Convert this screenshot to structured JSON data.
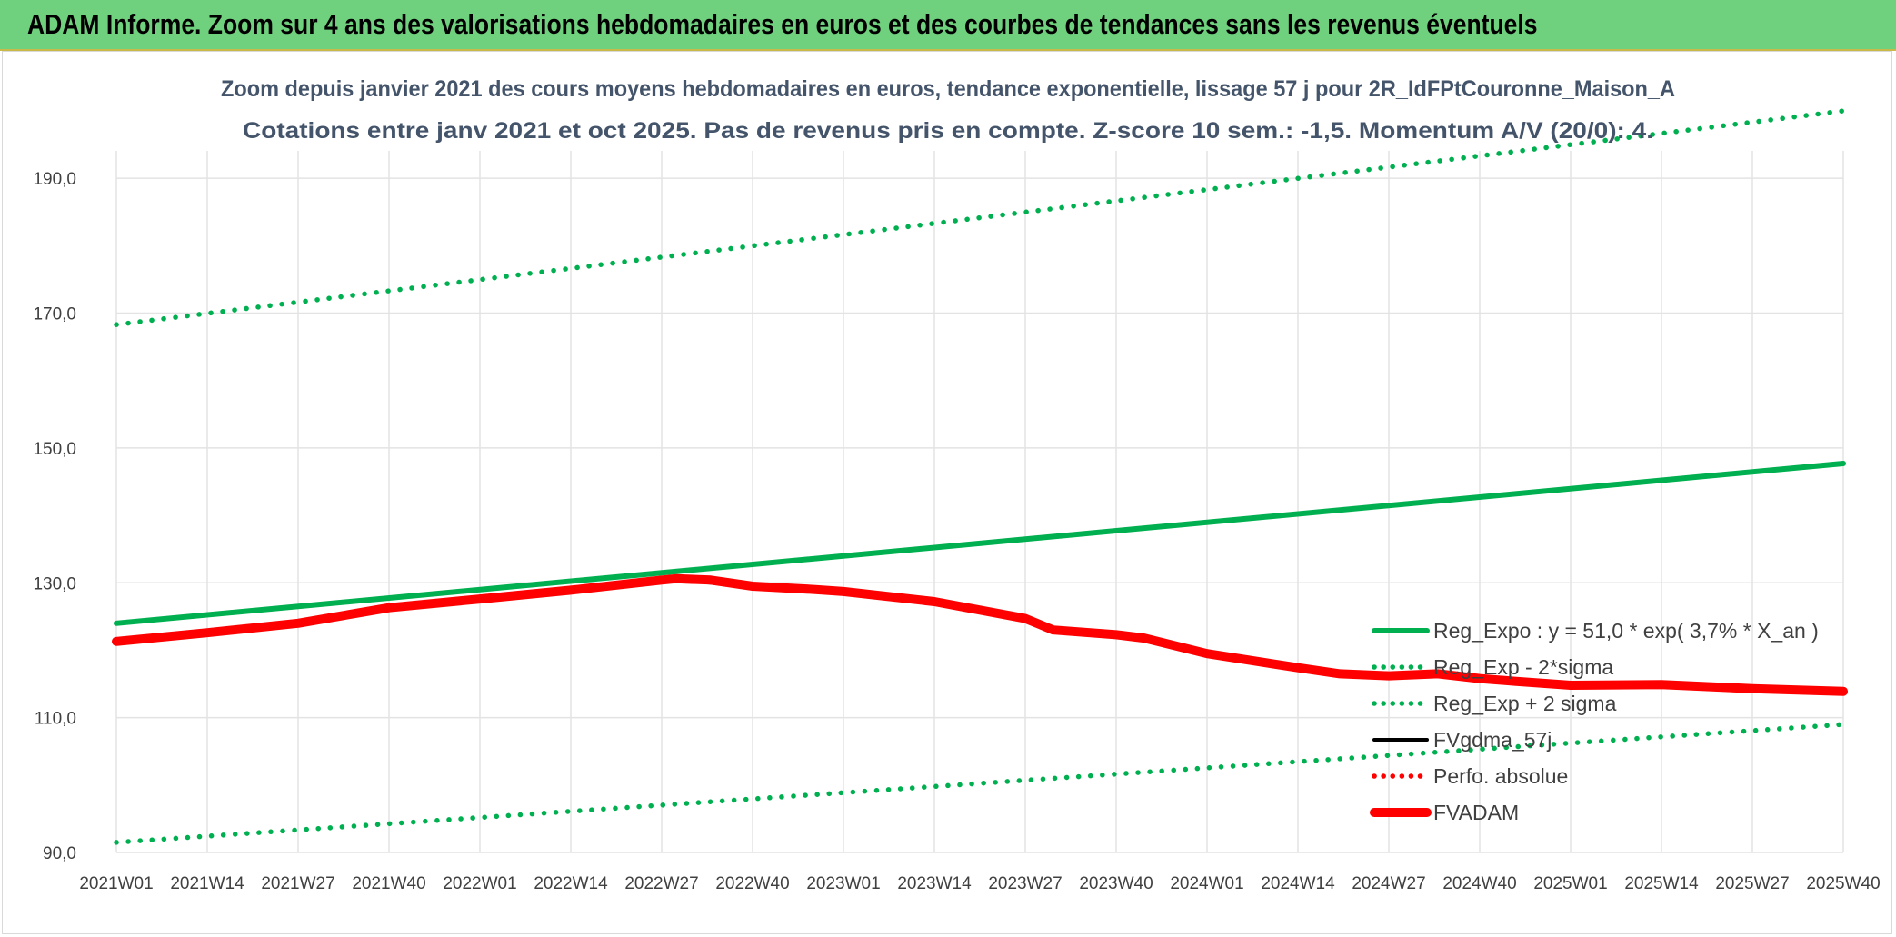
{
  "header": {
    "title": "ADAM Informe. Zoom sur 4 ans des valorisations hebdomadaires en euros et des courbes de tendances sans les revenus éventuels"
  },
  "chart_data": {
    "type": "line",
    "title": "Zoom depuis janvier 2021 des cours moyens hebdomadaires en euros, tendance exponentielle, lissage 57 j pour 2R_IdFPtCouronne_Maison_A",
    "subtitle": "Cotations entre janv 2021 et oct 2025. Pas de revenus pris en compte. Z-score 10 sem.: -1,5. Momentum A/V (20/0): 4.",
    "xlabel": "",
    "ylabel": "",
    "ylim": [
      90,
      200
    ],
    "x_range": [
      0,
      247
    ],
    "y_ticks": [
      "90,0",
      "110,0",
      "130,0",
      "150,0",
      "170,0",
      "190,0"
    ],
    "y_tick_values": [
      90,
      110,
      130,
      150,
      170,
      190
    ],
    "x_ticks": [
      "2021W01",
      "2021W14",
      "2021W27",
      "2021W40",
      "2022W01",
      "2022W14",
      "2022W27",
      "2022W40",
      "2023W01",
      "2023W14",
      "2023W27",
      "2023W40",
      "2024W01",
      "2024W14",
      "2024W27",
      "2024W40",
      "2025W01",
      "2025W14",
      "2025W27",
      "2025W40"
    ],
    "grid": true,
    "legend_position": "bottom-right",
    "series": [
      {
        "name": "Reg_Expo : y = 51,0 * exp( 3,7% *  X_an )",
        "style": "solid",
        "color": "#00b050",
        "x": [
          0,
          247
        ],
        "values": [
          124.0,
          147.7
        ]
      },
      {
        "name": "Reg_Exp - 2*sigma",
        "style": "dotted",
        "color": "#00b050",
        "x": [
          0,
          247
        ],
        "values": [
          91.5,
          109.0
        ]
      },
      {
        "name": "Reg_Exp + 2 sigma",
        "style": "dotted",
        "color": "#00b050",
        "x": [
          0,
          247
        ],
        "values": [
          168.3,
          200.0
        ]
      },
      {
        "name": "FVgdma_57j",
        "style": "solid",
        "color": "#000000",
        "x": [
          0,
          13,
          26,
          35,
          39,
          52,
          65,
          78,
          80,
          85,
          91,
          100,
          104,
          117,
          130,
          134,
          143,
          147,
          156,
          169,
          175,
          182,
          189,
          195,
          200,
          208,
          221,
          234,
          247
        ],
        "values": [
          121.3,
          122.8,
          124.2,
          125.7,
          126.4,
          127.8,
          129.0,
          130.3,
          130.4,
          130.0,
          129.4,
          129.0,
          128.6,
          127.3,
          125.0,
          123.3,
          122.4,
          121.8,
          119.6,
          117.6,
          116.8,
          116.2,
          116.4,
          115.8,
          115.2,
          114.8,
          114.6,
          114.2,
          113.8
        ]
      },
      {
        "name": "Perfo. absolue",
        "style": "dotted",
        "color": "#ff0000",
        "x": [],
        "values": []
      },
      {
        "name": "FVADAM",
        "style": "solid",
        "color": "#ff0000",
        "x": [
          0,
          13,
          26,
          35,
          39,
          52,
          65,
          78,
          80,
          85,
          91,
          100,
          104,
          117,
          130,
          134,
          143,
          147,
          156,
          169,
          175,
          182,
          189,
          195,
          200,
          208,
          221,
          234,
          247
        ],
        "values": [
          121.3,
          122.6,
          124.0,
          125.6,
          126.3,
          127.6,
          128.9,
          130.4,
          130.6,
          130.4,
          129.5,
          129.0,
          128.7,
          127.2,
          124.7,
          123.0,
          122.3,
          121.8,
          119.5,
          117.4,
          116.5,
          116.2,
          116.5,
          115.8,
          115.4,
          114.8,
          114.9,
          114.3,
          113.9
        ]
      }
    ]
  }
}
